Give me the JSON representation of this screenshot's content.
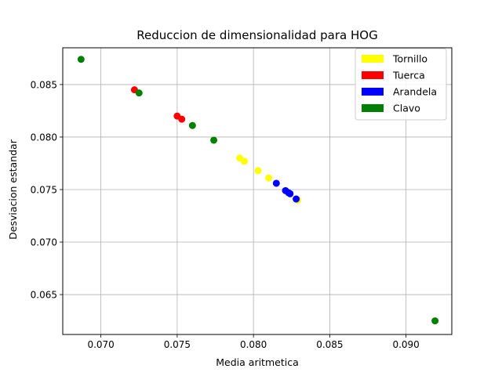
{
  "chart_data": {
    "type": "scatter",
    "title": "Reduccion de dimensionalidad para HOG",
    "xlabel": "Media aritmetica",
    "ylabel": "Desviacion estandar",
    "xlim": [
      0.0675,
      0.093
    ],
    "ylim": [
      0.0612,
      0.0885
    ],
    "x_ticks": [
      0.07,
      0.075,
      0.08,
      0.085,
      0.09
    ],
    "x_tick_labels": [
      "0.070",
      "0.075",
      "0.080",
      "0.085",
      "0.090"
    ],
    "y_ticks": [
      0.065,
      0.07,
      0.075,
      0.08,
      0.085
    ],
    "y_tick_labels": [
      "0.065",
      "0.070",
      "0.075",
      "0.080",
      "0.085"
    ],
    "grid": true,
    "legend_position": "top-right",
    "series": [
      {
        "name": "Tornillo",
        "color": "#ffff00",
        "points": [
          [
            0.0791,
            0.078
          ],
          [
            0.0794,
            0.0777
          ],
          [
            0.0803,
            0.0768
          ],
          [
            0.081,
            0.0761
          ],
          [
            0.0829,
            0.074
          ]
        ]
      },
      {
        "name": "Tuerca",
        "color": "#ff0000",
        "points": [
          [
            0.0722,
            0.0845
          ],
          [
            0.075,
            0.082
          ],
          [
            0.0753,
            0.0817
          ]
        ]
      },
      {
        "name": "Arandela",
        "color": "#0000ff",
        "points": [
          [
            0.0815,
            0.0756
          ],
          [
            0.0821,
            0.0749
          ],
          [
            0.0823,
            0.0747
          ],
          [
            0.0824,
            0.0746
          ],
          [
            0.0828,
            0.0741
          ]
        ]
      },
      {
        "name": "Clavo",
        "color": "#008000",
        "points": [
          [
            0.0687,
            0.0874
          ],
          [
            0.0725,
            0.0842
          ],
          [
            0.076,
            0.0811
          ],
          [
            0.0774,
            0.0797
          ],
          [
            0.0919,
            0.0625
          ]
        ]
      }
    ]
  }
}
